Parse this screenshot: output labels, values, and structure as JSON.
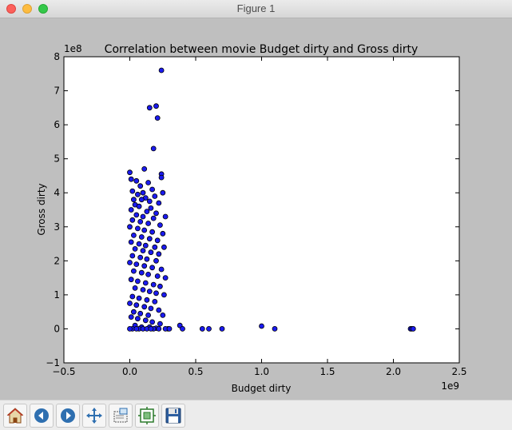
{
  "window": {
    "title": "Figure 1"
  },
  "toolbar": {
    "buttons": [
      {
        "name": "home",
        "icon": "home-icon"
      },
      {
        "name": "back",
        "icon": "back-arrow-icon"
      },
      {
        "name": "forward",
        "icon": "forward-arrow-icon"
      },
      {
        "name": "pan",
        "icon": "pan-move-icon"
      },
      {
        "name": "zoom",
        "icon": "zoom-rect-icon"
      },
      {
        "name": "subplots",
        "icon": "subplots-config-icon"
      },
      {
        "name": "save",
        "icon": "save-floppy-icon"
      }
    ]
  },
  "colors": {
    "marker_fill": "#1a1af0",
    "marker_edge": "#000000",
    "figure_bg": "#bfbfbf",
    "axes_bg": "#ffffff"
  },
  "chart_data": {
    "type": "scatter",
    "title": "Correlation between movie Budget dirty and Gross dirty",
    "xlabel": "Budget dirty",
    "ylabel": "Gross dirty",
    "x_offset_text": "1e9",
    "y_offset_text": "1e8",
    "xlim": [
      -0.5,
      2.5
    ],
    "ylim": [
      -1,
      8
    ],
    "x_ticks": [
      -0.5,
      0.0,
      0.5,
      1.0,
      1.5,
      2.0,
      2.5
    ],
    "x_tick_labels": [
      "−0.5",
      "0.0",
      "0.5",
      "1.0",
      "1.5",
      "2.0",
      "2.5"
    ],
    "y_ticks": [
      -1,
      0,
      1,
      2,
      3,
      4,
      5,
      6,
      7,
      8
    ],
    "y_tick_labels": [
      "−1",
      "0",
      "1",
      "2",
      "3",
      "4",
      "5",
      "6",
      "7",
      "8"
    ],
    "grid": false,
    "legend": "none",
    "units_note": "x in units of 1e9, y in units of 1e8",
    "points": [
      [
        0.24,
        7.6
      ],
      [
        0.2,
        6.55
      ],
      [
        0.15,
        6.5
      ],
      [
        0.21,
        6.2
      ],
      [
        0.18,
        5.3
      ],
      [
        0.11,
        4.7
      ],
      [
        0.0,
        4.6
      ],
      [
        0.24,
        4.55
      ],
      [
        0.24,
        4.45
      ],
      [
        0.01,
        4.4
      ],
      [
        0.05,
        4.35
      ],
      [
        0.14,
        4.3
      ],
      [
        0.08,
        4.2
      ],
      [
        0.17,
        4.1
      ],
      [
        0.02,
        4.05
      ],
      [
        0.1,
        4.0
      ],
      [
        0.25,
        4.0
      ],
      [
        0.06,
        3.95
      ],
      [
        0.19,
        3.9
      ],
      [
        0.12,
        3.85
      ],
      [
        0.03,
        3.8
      ],
      [
        0.09,
        3.8
      ],
      [
        0.15,
        3.75
      ],
      [
        0.22,
        3.7
      ],
      [
        0.04,
        3.65
      ],
      [
        0.07,
        3.6
      ],
      [
        0.16,
        3.55
      ],
      [
        0.01,
        3.5
      ],
      [
        0.13,
        3.45
      ],
      [
        0.2,
        3.4
      ],
      [
        0.05,
        3.35
      ],
      [
        0.1,
        3.3
      ],
      [
        0.18,
        3.25
      ],
      [
        0.27,
        3.3
      ],
      [
        0.02,
        3.2
      ],
      [
        0.08,
        3.15
      ],
      [
        0.14,
        3.1
      ],
      [
        0.23,
        3.05
      ],
      [
        0.0,
        3.0
      ],
      [
        0.06,
        2.95
      ],
      [
        0.11,
        2.9
      ],
      [
        0.17,
        2.85
      ],
      [
        0.25,
        2.8
      ],
      [
        0.03,
        2.75
      ],
      [
        0.09,
        2.7
      ],
      [
        0.15,
        2.65
      ],
      [
        0.21,
        2.6
      ],
      [
        0.01,
        2.55
      ],
      [
        0.07,
        2.5
      ],
      [
        0.12,
        2.45
      ],
      [
        0.19,
        2.4
      ],
      [
        0.26,
        2.4
      ],
      [
        0.04,
        2.35
      ],
      [
        0.1,
        2.3
      ],
      [
        0.16,
        2.25
      ],
      [
        0.22,
        2.2
      ],
      [
        0.02,
        2.15
      ],
      [
        0.08,
        2.1
      ],
      [
        0.13,
        2.05
      ],
      [
        0.2,
        2.0
      ],
      [
        0.0,
        1.95
      ],
      [
        0.05,
        1.9
      ],
      [
        0.11,
        1.85
      ],
      [
        0.17,
        1.8
      ],
      [
        0.24,
        1.75
      ],
      [
        0.03,
        1.7
      ],
      [
        0.09,
        1.65
      ],
      [
        0.14,
        1.6
      ],
      [
        0.21,
        1.55
      ],
      [
        0.27,
        1.5
      ],
      [
        0.01,
        1.45
      ],
      [
        0.06,
        1.4
      ],
      [
        0.12,
        1.35
      ],
      [
        0.18,
        1.3
      ],
      [
        0.23,
        1.25
      ],
      [
        0.04,
        1.2
      ],
      [
        0.1,
        1.15
      ],
      [
        0.15,
        1.1
      ],
      [
        0.2,
        1.05
      ],
      [
        0.26,
        1.0
      ],
      [
        0.02,
        0.95
      ],
      [
        0.07,
        0.9
      ],
      [
        0.13,
        0.85
      ],
      [
        0.19,
        0.8
      ],
      [
        0.0,
        0.75
      ],
      [
        0.05,
        0.7
      ],
      [
        0.11,
        0.65
      ],
      [
        0.16,
        0.6
      ],
      [
        0.22,
        0.55
      ],
      [
        0.03,
        0.5
      ],
      [
        0.08,
        0.45
      ],
      [
        0.14,
        0.4
      ],
      [
        0.25,
        0.4
      ],
      [
        0.01,
        0.35
      ],
      [
        0.06,
        0.3
      ],
      [
        0.12,
        0.25
      ],
      [
        0.17,
        0.2
      ],
      [
        0.23,
        0.15
      ],
      [
        0.04,
        0.1
      ],
      [
        0.09,
        0.05
      ],
      [
        0.15,
        0.05
      ],
      [
        0.2,
        0.02
      ],
      [
        0.02,
        0.0
      ],
      [
        0.07,
        0.0
      ],
      [
        0.1,
        0.0
      ],
      [
        0.13,
        0.0
      ],
      [
        0.18,
        0.0
      ],
      [
        0.22,
        0.0
      ],
      [
        0.29,
        0.0
      ],
      [
        0.0,
        0.0
      ],
      [
        0.05,
        0.0
      ],
      [
        0.16,
        0.0
      ],
      [
        0.27,
        0.0
      ],
      [
        0.38,
        0.1
      ],
      [
        0.3,
        0.0
      ],
      [
        0.4,
        0.0
      ],
      [
        0.55,
        0.0
      ],
      [
        0.6,
        0.0
      ],
      [
        0.7,
        0.0
      ],
      [
        1.0,
        0.08
      ],
      [
        1.1,
        0.0
      ],
      [
        2.13,
        0.0
      ],
      [
        2.14,
        0.0
      ],
      [
        2.15,
        0.0
      ]
    ]
  }
}
